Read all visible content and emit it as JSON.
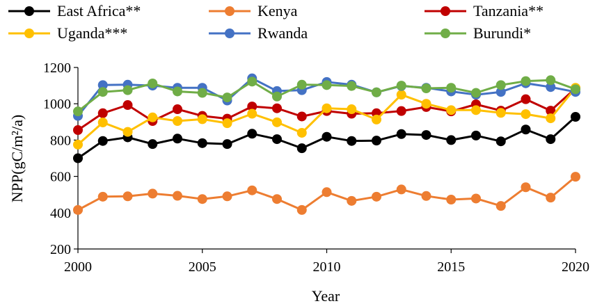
{
  "chart_data": {
    "type": "line",
    "title": "",
    "xlabel": "Year",
    "ylabel": "NPP(gC/m²/a)",
    "xlim": [
      2000,
      2020
    ],
    "ylim": [
      200,
      1200
    ],
    "grid": false,
    "legend_position": "top",
    "x": [
      2000,
      2001,
      2002,
      2003,
      2004,
      2005,
      2006,
      2007,
      2008,
      2009,
      2010,
      2011,
      2012,
      2013,
      2014,
      2015,
      2016,
      2017,
      2018,
      2019,
      2020
    ],
    "x_ticks": [
      "2000",
      "2005",
      "2010",
      "2015",
      "2020"
    ],
    "x_tick_values": [
      2000,
      2005,
      2010,
      2015,
      2020
    ],
    "y_ticks": [
      "200",
      "400",
      "600",
      "800",
      "1000",
      "1200"
    ],
    "y_tick_values": [
      200,
      400,
      600,
      800,
      1000,
      1200
    ],
    "series": [
      {
        "name": "East Africa**",
        "color": "#000000",
        "values": [
          700,
          795,
          815,
          778,
          808,
          783,
          778,
          835,
          805,
          755,
          818,
          795,
          797,
          833,
          828,
          800,
          825,
          793,
          858,
          805,
          928
        ]
      },
      {
        "name": "Kenya",
        "color": "#ED7D31",
        "values": [
          415,
          488,
          490,
          505,
          493,
          475,
          490,
          523,
          475,
          415,
          513,
          465,
          488,
          528,
          492,
          472,
          478,
          437,
          540,
          483,
          598
        ]
      },
      {
        "name": "Tanzania**",
        "color": "#C00000",
        "values": [
          855,
          948,
          993,
          905,
          970,
          933,
          918,
          985,
          975,
          930,
          960,
          945,
          948,
          960,
          982,
          958,
          997,
          962,
          1025,
          962,
          1085
        ]
      },
      {
        "name": "Uganda***",
        "color": "#FFC000",
        "values": [
          775,
          897,
          845,
          925,
          905,
          915,
          893,
          945,
          898,
          840,
          975,
          970,
          913,
          1050,
          1000,
          965,
          965,
          950,
          943,
          920,
          1088
        ]
      },
      {
        "name": "Rwanda",
        "color": "#4472C4",
        "values": [
          933,
          1103,
          1105,
          1100,
          1088,
          1088,
          1018,
          1140,
          1070,
          1075,
          1120,
          1105,
          1063,
          1098,
          1088,
          1068,
          1050,
          1065,
          1113,
          1092,
          1065
        ]
      },
      {
        "name": "Burundi*",
        "color": "#70AD47",
        "values": [
          958,
          1065,
          1075,
          1112,
          1068,
          1060,
          1035,
          1122,
          1040,
          1105,
          1103,
          1098,
          1063,
          1100,
          1085,
          1088,
          1060,
          1103,
          1125,
          1130,
          1080
        ]
      }
    ]
  }
}
